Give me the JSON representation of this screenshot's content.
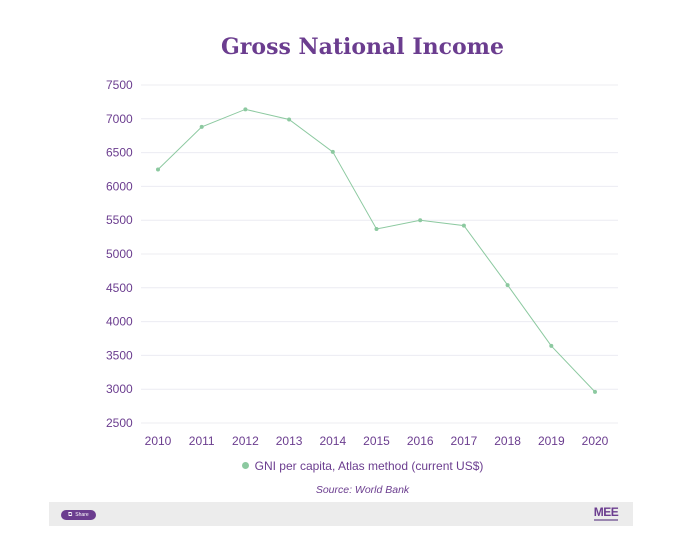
{
  "chart_data": {
    "type": "line",
    "title": "Gross National Income",
    "xlabel": "",
    "ylabel": "",
    "x": [
      "2010",
      "2011",
      "2012",
      "2013",
      "2014",
      "2015",
      "2016",
      "2017",
      "2018",
      "2019",
      "2020"
    ],
    "series": [
      {
        "name": "GNI per capita, Atlas method (current US$)",
        "color": "#8cc9a0",
        "values": [
          6250,
          6880,
          7140,
          6990,
          6510,
          5370,
          5500,
          5420,
          4540,
          3640,
          2960
        ]
      }
    ],
    "yticks": [
      "2500",
      "3000",
      "3500",
      "4000",
      "4500",
      "5000",
      "5500",
      "6000",
      "6500",
      "7000",
      "7500"
    ],
    "ylim": [
      2500,
      7500
    ],
    "grid": true,
    "legend_position": "bottom"
  },
  "source_note": "Source: World Bank",
  "footer": {
    "share_label": "Share",
    "logo_text": "MEE"
  },
  "colors": {
    "accent": "#6b3d8f",
    "line": "#8cc9a0",
    "footer_bg": "#ececec"
  }
}
